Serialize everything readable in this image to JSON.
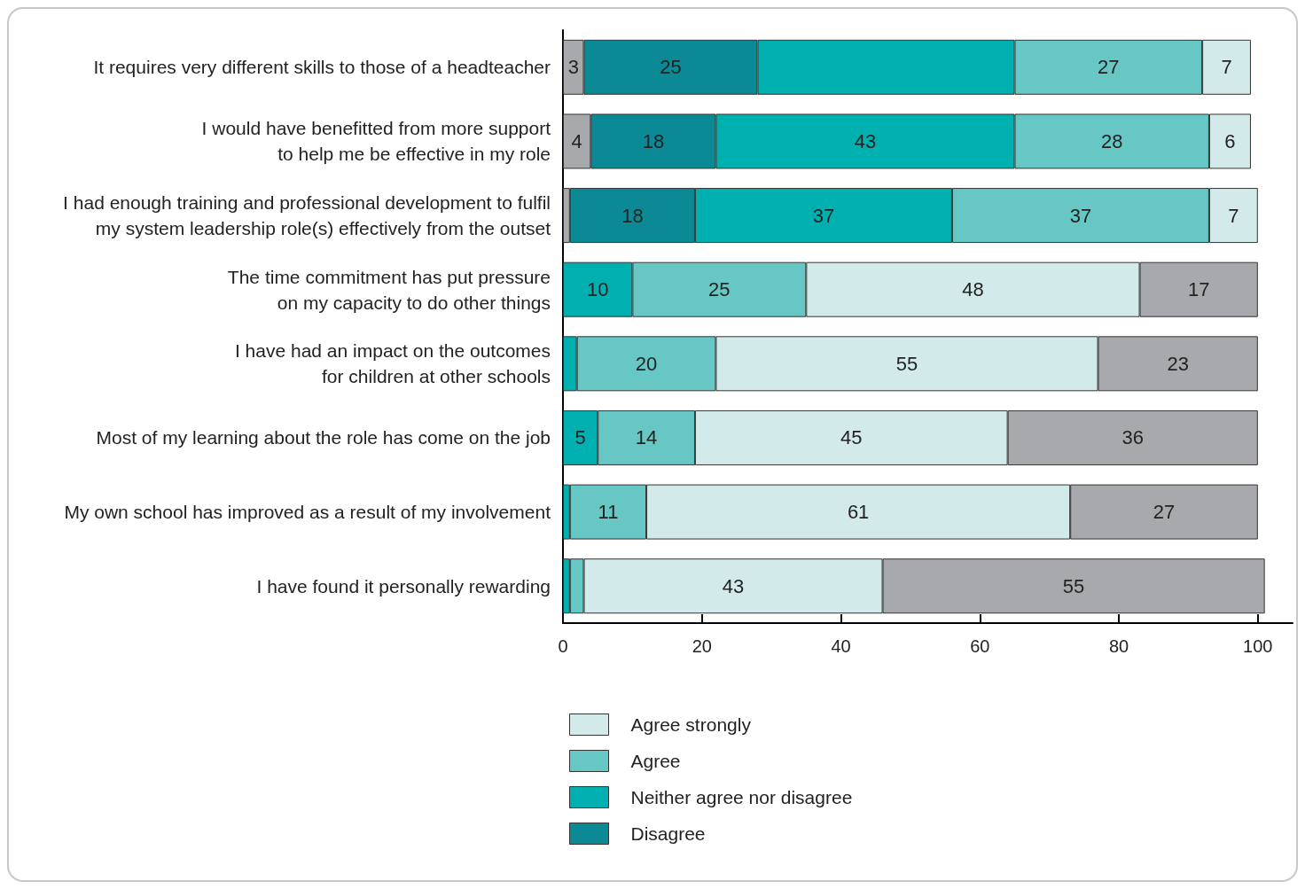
{
  "chart_data": {
    "type": "bar",
    "orientation": "horizontal",
    "stacked": true,
    "legend": "bottom",
    "grid": false,
    "categories": [
      "It requires very different skills to those of a headteacher",
      "I would have benefitted from more support\nto help me be effective in my role",
      "I had enough training and professional development to fulfil\nmy system leadership role(s) effectively from the outset",
      "The time commitment has put pressure\non my capacity to do other things",
      "I have had an impact on the outcomes\nfor children at other schools",
      "Most of my learning about the role has come on the job",
      "My own school has improved as a result of my involvement",
      "I have found it personally rewarding"
    ],
    "series": [
      {
        "color": "#a7a9ac",
        "values": [
          3,
          4,
          1,
          null,
          null,
          null,
          null,
          null
        ],
        "value_labels": [
          "3",
          "4",
          null,
          null,
          null,
          null,
          null,
          null
        ]
      },
      {
        "name": "Disagree",
        "color": "#0b8a96",
        "values": [
          25,
          18,
          18,
          null,
          null,
          null,
          null,
          null
        ],
        "value_labels": [
          "25",
          "18",
          "18",
          null,
          null,
          null,
          null,
          null
        ]
      },
      {
        "name": "Neither agree nor disagree",
        "color": "#00b0b0",
        "values": [
          37,
          43,
          37,
          10,
          2,
          5,
          1,
          1
        ],
        "value_labels": [
          null,
          "43",
          "37",
          "10",
          null,
          "5",
          null,
          null
        ]
      },
      {
        "name": "Agree",
        "color": "#66c7c4",
        "values": [
          27,
          28,
          37,
          25,
          20,
          14,
          11,
          2
        ],
        "value_labels": [
          "27",
          "28",
          "37",
          "25",
          "20",
          "14",
          "11",
          null
        ]
      },
      {
        "name": "Agree strongly",
        "color": "#d2ebea",
        "values": [
          7,
          6,
          7,
          48,
          55,
          45,
          61,
          43
        ],
        "value_labels": [
          "7",
          "6",
          "7",
          "48",
          "55",
          "45",
          "61",
          "43"
        ]
      },
      {
        "color": "#a7a9ac",
        "values": [
          null,
          null,
          null,
          17,
          23,
          36,
          27,
          55
        ],
        "value_labels": [
          null,
          null,
          null,
          "17",
          "23",
          "36",
          "27",
          "55"
        ]
      }
    ],
    "xlim": [
      0,
      105
    ],
    "xticks": [
      0,
      20,
      40,
      60,
      80,
      100
    ]
  }
}
